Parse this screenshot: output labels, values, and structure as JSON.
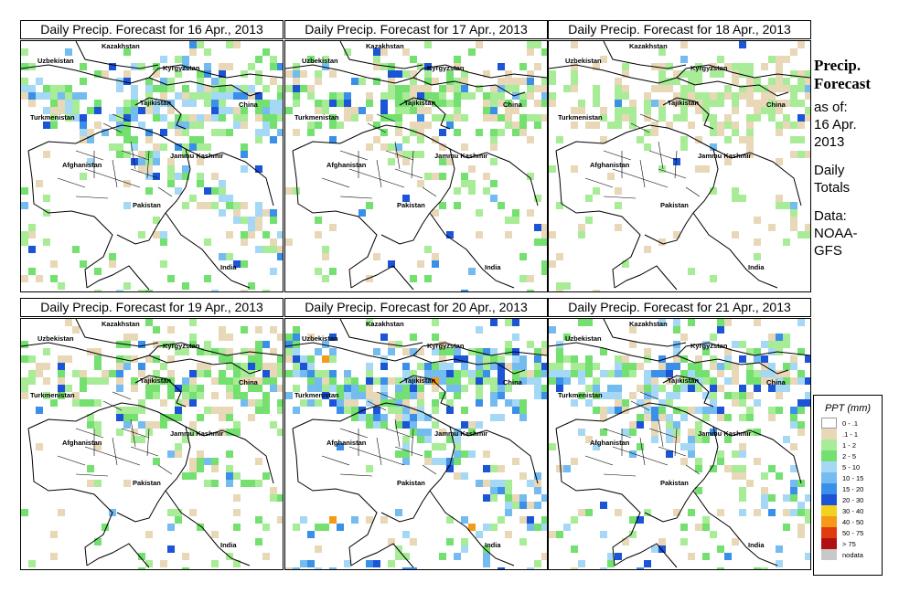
{
  "panels": [
    {
      "title": "Daily Precip. Forecast for  16 Apr., 2013",
      "seed": 11,
      "intensity": 3
    },
    {
      "title": "Daily Precip. Forecast for  17 Apr., 2013",
      "seed": 23,
      "intensity": 2
    },
    {
      "title": "Daily Precip. Forecast for  18 Apr., 2013",
      "seed": 37,
      "intensity": 1
    },
    {
      "title": "Daily Precip. Forecast for  19 Apr., 2013",
      "seed": 41,
      "intensity": 2
    },
    {
      "title": "Daily Precip. Forecast for  20 Apr., 2013",
      "seed": 53,
      "intensity": 4
    },
    {
      "title": "Daily Precip. Forecast for  21 Apr., 2013",
      "seed": 67,
      "intensity": 3
    }
  ],
  "region_labels": [
    "Kazakhstan",
    "Uzbekistan",
    "Kyrgyzstan",
    "Tajikistan",
    "China",
    "Turkmenistan",
    "Afghanistan",
    "Jammu Kashmir",
    "Pakistan",
    "India"
  ],
  "side": {
    "title_line1": "Precip.",
    "title_line2": "Forecast",
    "asof_line1": "as of:",
    "asof_line2": "16 Apr.",
    "asof_line3": "2013",
    "totals_line1": "Daily",
    "totals_line2": "Totals",
    "source_line1": "Data:",
    "source_line2": "NOAA-",
    "source_line3": "GFS"
  },
  "legend": {
    "title": "PPT (mm)",
    "items": [
      {
        "label": "0 - .1",
        "color": "#ffffff"
      },
      {
        "label": ".1 - 1",
        "color": "#e8d8b8"
      },
      {
        "label": "1 - 2",
        "color": "#a8ec98"
      },
      {
        "label": "2 - 5",
        "color": "#74e070"
      },
      {
        "label": "5 - 10",
        "color": "#a4d8f4"
      },
      {
        "label": "10 - 15",
        "color": "#74bcf0"
      },
      {
        "label": "15 - 20",
        "color": "#3a90e8"
      },
      {
        "label": "20 - 30",
        "color": "#1c54d8"
      },
      {
        "label": "30 - 40",
        "color": "#f4d020"
      },
      {
        "label": "40 - 50",
        "color": "#f49a18"
      },
      {
        "label": "50 - 75",
        "color": "#e03c10"
      },
      {
        "label": "> 75",
        "color": "#b01010"
      },
      {
        "label": "nodata",
        "color": "#c8c8c8"
      }
    ]
  }
}
